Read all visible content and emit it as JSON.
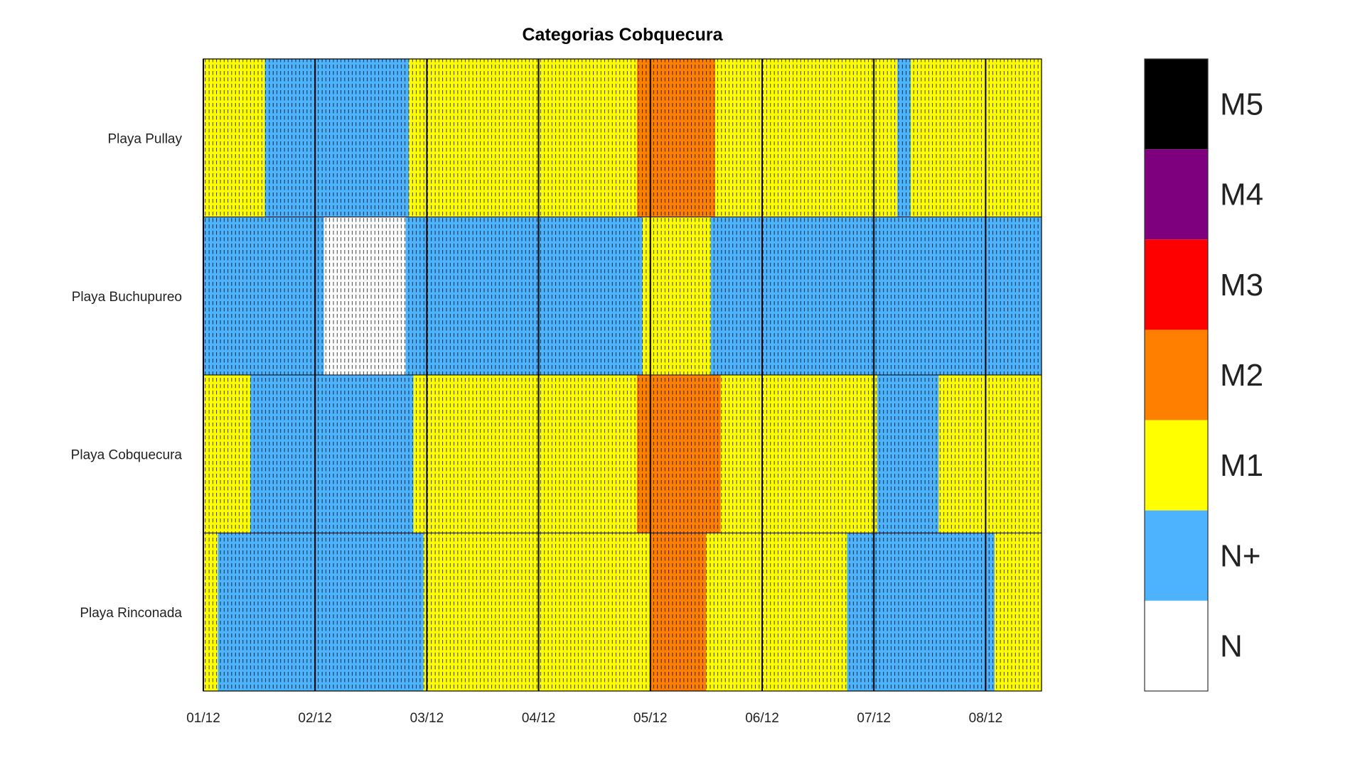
{
  "chart_data": {
    "type": "heatmap",
    "title": "Categorias Cobquecura",
    "xlabel": "",
    "ylabel": "",
    "x_unit": "days from 01/12",
    "xlim": [
      0,
      7.5
    ],
    "xticks": [
      0,
      1,
      2,
      3,
      4,
      5,
      6,
      7
    ],
    "xtick_labels": [
      "01/12",
      "02/12",
      "03/12",
      "04/12",
      "05/12",
      "06/12",
      "07/12",
      "08/12"
    ],
    "rows": [
      "Playa Pullay",
      "Playa Buchupureo",
      "Playa Cobquecura",
      "Playa Rinconada"
    ],
    "segments": [
      [
        {
          "start": 0.0,
          "end": 0.55,
          "cat": "M1"
        },
        {
          "start": 0.55,
          "end": 1.84,
          "cat": "N+"
        },
        {
          "start": 1.84,
          "end": 3.88,
          "cat": "M1"
        },
        {
          "start": 3.88,
          "end": 4.58,
          "cat": "M2"
        },
        {
          "start": 4.58,
          "end": 6.21,
          "cat": "M1"
        },
        {
          "start": 6.21,
          "end": 6.33,
          "cat": "N+"
        },
        {
          "start": 6.33,
          "end": 7.5,
          "cat": "M1"
        }
      ],
      [
        {
          "start": 0.0,
          "end": 1.08,
          "cat": "N+"
        },
        {
          "start": 1.08,
          "end": 1.81,
          "cat": "N"
        },
        {
          "start": 1.81,
          "end": 3.93,
          "cat": "N+"
        },
        {
          "start": 3.93,
          "end": 4.54,
          "cat": "M1"
        },
        {
          "start": 4.54,
          "end": 7.5,
          "cat": "N+"
        }
      ],
      [
        {
          "start": 0.0,
          "end": 0.42,
          "cat": "M1"
        },
        {
          "start": 0.42,
          "end": 1.88,
          "cat": "N+"
        },
        {
          "start": 1.88,
          "end": 3.88,
          "cat": "M1"
        },
        {
          "start": 3.88,
          "end": 4.63,
          "cat": "M2"
        },
        {
          "start": 4.63,
          "end": 6.03,
          "cat": "M1"
        },
        {
          "start": 6.03,
          "end": 6.58,
          "cat": "N+"
        },
        {
          "start": 6.58,
          "end": 7.5,
          "cat": "M1"
        }
      ],
      [
        {
          "start": 0.0,
          "end": 0.13,
          "cat": "M1"
        },
        {
          "start": 0.13,
          "end": 1.97,
          "cat": "N+"
        },
        {
          "start": 1.97,
          "end": 4.0,
          "cat": "M1"
        },
        {
          "start": 4.0,
          "end": 4.5,
          "cat": "M2"
        },
        {
          "start": 4.5,
          "end": 5.76,
          "cat": "M1"
        },
        {
          "start": 5.76,
          "end": 7.08,
          "cat": "N+"
        },
        {
          "start": 7.08,
          "end": 7.5,
          "cat": "M1"
        }
      ]
    ],
    "categories": [
      {
        "label": "M5",
        "color": "#000000"
      },
      {
        "label": "M4",
        "color": "#7f007f"
      },
      {
        "label": "M3",
        "color": "#ff0000"
      },
      {
        "label": "M2",
        "color": "#ff7f00"
      },
      {
        "label": "M1",
        "color": "#ffff00"
      },
      {
        "label": "N+",
        "color": "#4db3ff"
      },
      {
        "label": "N",
        "color": "#ffffff"
      }
    ]
  }
}
